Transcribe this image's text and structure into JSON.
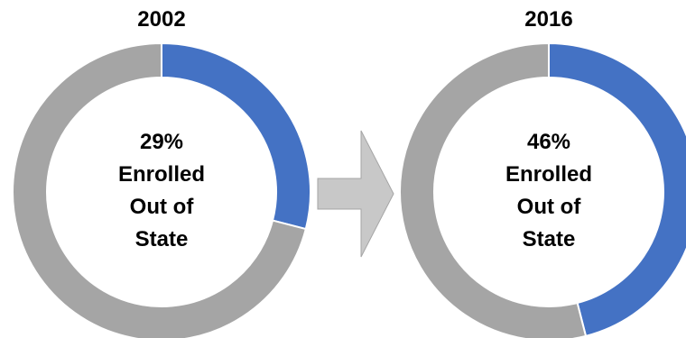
{
  "chart_data": [
    {
      "type": "pie",
      "variant": "donut",
      "title": "2002",
      "slices": [
        {
          "name": "Enrolled Out of State",
          "value": 29,
          "color": "#4472C4"
        },
        {
          "name": "",
          "value": 71,
          "color": "#A5A5A5"
        }
      ],
      "center_label": {
        "value": "29%",
        "line1": "Enrolled",
        "line2": "Out of",
        "line3": "State"
      }
    },
    {
      "type": "pie",
      "variant": "donut",
      "title": "2016",
      "slices": [
        {
          "name": "Enrolled Out of State",
          "value": 46,
          "color": "#4472C4"
        },
        {
          "name": "",
          "value": 54,
          "color": "#A5A5A5"
        }
      ],
      "center_label": {
        "value": "46%",
        "line1": "Enrolled",
        "line2": "Out of",
        "line3": "State"
      }
    }
  ],
  "arrow": {
    "icon": "right-arrow-icon",
    "fill": "#C8C8C8",
    "stroke": "#A5A5A5"
  }
}
